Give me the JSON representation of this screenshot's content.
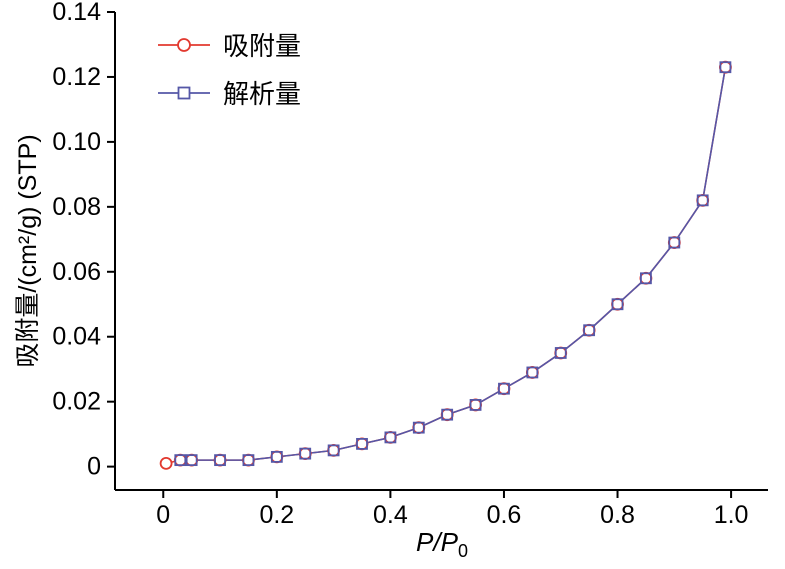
{
  "chart_data": {
    "type": "line",
    "title": "",
    "xlabel": "P/P0",
    "xlabel_italic": "P/P",
    "xlabel_sub": "0",
    "ylabel": "吸附量/(cm²/g) (STP)",
    "xlim": [
      -0.085,
      1.065
    ],
    "ylim": [
      -0.0072,
      0.14
    ],
    "grid": false,
    "legend_position": "top-left-inside",
    "xtick_values": [
      0,
      0.2,
      0.4,
      0.6,
      0.8,
      1.0
    ],
    "xtick_labels": [
      "0",
      "0.2",
      "0.4",
      "0.6",
      "0.8",
      "1.0"
    ],
    "ytick_values": [
      0,
      0.02,
      0.04,
      0.06,
      0.08,
      0.1,
      0.12,
      0.14
    ],
    "ytick_labels": [
      "0",
      "0.02",
      "0.04",
      "0.06",
      "0.08",
      "0.10",
      "0.12",
      "0.14"
    ],
    "series": [
      {
        "name": "吸附量",
        "marker": "circle",
        "color": "#e2392f",
        "x": [
          0.005,
          0.03,
          0.05,
          0.1,
          0.15,
          0.2,
          0.25,
          0.3,
          0.35,
          0.4,
          0.45,
          0.5,
          0.55,
          0.6,
          0.65,
          0.7,
          0.75,
          0.8,
          0.85,
          0.9,
          0.95,
          0.99
        ],
        "y": [
          0.001,
          0.002,
          0.002,
          0.002,
          0.002,
          0.003,
          0.004,
          0.005,
          0.007,
          0.009,
          0.012,
          0.016,
          0.019,
          0.024,
          0.029,
          0.035,
          0.042,
          0.05,
          0.058,
          0.069,
          0.082,
          0.123
        ]
      },
      {
        "name": "解析量",
        "marker": "square",
        "color": "#5557a7",
        "x": [
          0.03,
          0.05,
          0.1,
          0.15,
          0.2,
          0.25,
          0.3,
          0.35,
          0.4,
          0.45,
          0.5,
          0.55,
          0.6,
          0.65,
          0.7,
          0.75,
          0.8,
          0.85,
          0.9,
          0.95,
          0.99
        ],
        "y": [
          0.002,
          0.002,
          0.002,
          0.002,
          0.003,
          0.004,
          0.005,
          0.007,
          0.009,
          0.012,
          0.016,
          0.019,
          0.024,
          0.029,
          0.035,
          0.042,
          0.05,
          0.058,
          0.069,
          0.082,
          0.123
        ]
      }
    ]
  }
}
